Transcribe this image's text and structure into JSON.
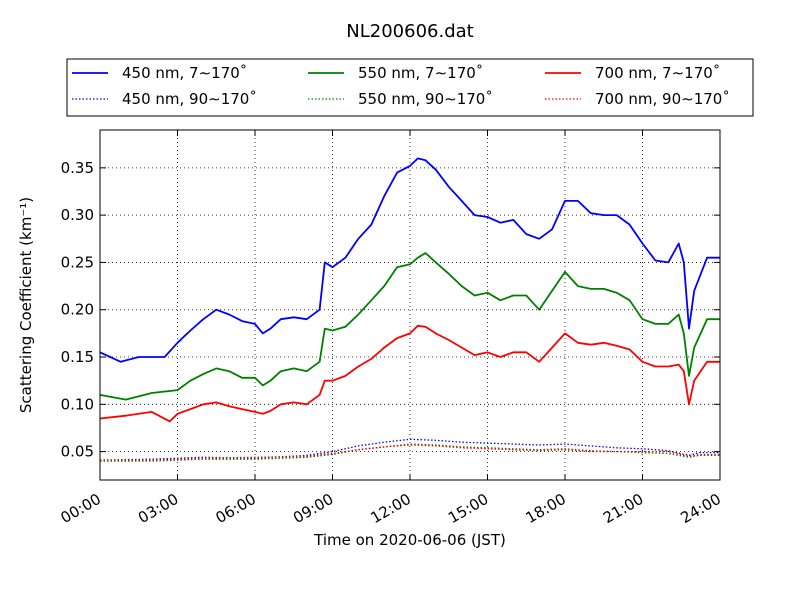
{
  "chart_data": {
    "type": "line",
    "title": "NL200606.dat",
    "xlabel": "Time on 2020-06-06 (JST)",
    "ylabel": "Scattering Coefficient (km⁻¹)",
    "xlim": [
      0,
      24
    ],
    "ylim": [
      0.02,
      0.39
    ],
    "x_unit": "hours",
    "grid": true,
    "legend_position": "top-outside",
    "x_ticks": [
      {
        "value": 0,
        "label": "00:00"
      },
      {
        "value": 3,
        "label": "03:00"
      },
      {
        "value": 6,
        "label": "06:00"
      },
      {
        "value": 9,
        "label": "09:00"
      },
      {
        "value": 12,
        "label": "12:00"
      },
      {
        "value": 15,
        "label": "15:00"
      },
      {
        "value": 18,
        "label": "18:00"
      },
      {
        "value": 21,
        "label": "21:00"
      },
      {
        "value": 24,
        "label": "24:00"
      }
    ],
    "y_ticks": [
      {
        "value": 0.05,
        "label": "0.05"
      },
      {
        "value": 0.1,
        "label": "0.10"
      },
      {
        "value": 0.15,
        "label": "0.15"
      },
      {
        "value": 0.2,
        "label": "0.20"
      },
      {
        "value": 0.25,
        "label": "0.25"
      },
      {
        "value": 0.3,
        "label": "0.30"
      },
      {
        "value": 0.35,
        "label": "0.35"
      }
    ],
    "series": [
      {
        "name": "450 nm, 7∼170˚",
        "color": "#0000ff",
        "style": "solid",
        "x": [
          0,
          0.8,
          1.5,
          2.5,
          3.0,
          3.5,
          4.0,
          4.5,
          5.0,
          5.5,
          6.0,
          6.3,
          6.6,
          7.0,
          7.5,
          8.0,
          8.5,
          8.7,
          9.0,
          9.5,
          10.0,
          10.5,
          11.0,
          11.5,
          12.0,
          12.3,
          12.6,
          13.0,
          13.5,
          14.0,
          14.5,
          15.0,
          15.5,
          16.0,
          16.5,
          17.0,
          17.5,
          18.0,
          18.5,
          19.0,
          19.5,
          20.0,
          20.5,
          21.0,
          21.5,
          22.0,
          22.2,
          22.4,
          22.6,
          22.8,
          23.0,
          23.5,
          24.0
        ],
        "y": [
          0.155,
          0.145,
          0.15,
          0.15,
          0.165,
          0.178,
          0.19,
          0.2,
          0.195,
          0.188,
          0.185,
          0.175,
          0.18,
          0.19,
          0.192,
          0.19,
          0.2,
          0.25,
          0.245,
          0.255,
          0.275,
          0.29,
          0.32,
          0.345,
          0.352,
          0.36,
          0.358,
          0.348,
          0.33,
          0.315,
          0.3,
          0.298,
          0.292,
          0.295,
          0.28,
          0.275,
          0.285,
          0.315,
          0.315,
          0.302,
          0.3,
          0.3,
          0.29,
          0.27,
          0.252,
          0.25,
          0.26,
          0.27,
          0.25,
          0.18,
          0.22,
          0.255,
          0.255
        ]
      },
      {
        "name": "450 nm, 90∼170˚",
        "color": "#0000ff",
        "style": "dotted",
        "x": [
          0,
          2,
          4,
          6,
          8,
          9,
          10,
          11,
          12,
          13,
          14,
          15,
          16,
          17,
          18,
          19,
          20,
          21,
          22,
          22.8,
          23.2,
          24
        ],
        "y": [
          0.041,
          0.042,
          0.044,
          0.043,
          0.046,
          0.05,
          0.056,
          0.06,
          0.063,
          0.062,
          0.06,
          0.059,
          0.058,
          0.057,
          0.058,
          0.056,
          0.054,
          0.053,
          0.051,
          0.046,
          0.049,
          0.049
        ]
      },
      {
        "name": "550 nm, 7∼170˚",
        "color": "#008000",
        "style": "solid",
        "x": [
          0,
          1,
          2,
          3,
          3.5,
          4,
          4.5,
          5,
          5.5,
          6,
          6.3,
          6.6,
          7,
          7.5,
          8,
          8.5,
          8.7,
          9,
          9.5,
          10,
          10.5,
          11,
          11.5,
          12,
          12.3,
          12.6,
          13,
          13.5,
          14,
          14.5,
          15,
          15.5,
          16,
          16.5,
          17,
          17.5,
          18,
          18.5,
          19,
          19.5,
          20,
          20.5,
          21,
          21.5,
          22,
          22.4,
          22.6,
          22.8,
          23,
          23.5,
          24
        ],
        "y": [
          0.11,
          0.105,
          0.112,
          0.115,
          0.125,
          0.132,
          0.138,
          0.135,
          0.128,
          0.128,
          0.12,
          0.125,
          0.135,
          0.138,
          0.135,
          0.145,
          0.18,
          0.178,
          0.182,
          0.195,
          0.21,
          0.225,
          0.245,
          0.248,
          0.255,
          0.26,
          0.25,
          0.238,
          0.225,
          0.215,
          0.218,
          0.21,
          0.215,
          0.215,
          0.2,
          0.22,
          0.24,
          0.225,
          0.222,
          0.222,
          0.218,
          0.21,
          0.19,
          0.185,
          0.185,
          0.195,
          0.175,
          0.13,
          0.16,
          0.19,
          0.19
        ]
      },
      {
        "name": "550 nm, 90∼170˚",
        "color": "#008000",
        "style": "dotted",
        "x": [
          0,
          2,
          4,
          6,
          8,
          9,
          10,
          11,
          12,
          13,
          14,
          15,
          16,
          17,
          18,
          19,
          20,
          21,
          22,
          22.8,
          23.2,
          24
        ],
        "y": [
          0.04,
          0.04,
          0.042,
          0.042,
          0.044,
          0.047,
          0.052,
          0.055,
          0.058,
          0.057,
          0.055,
          0.054,
          0.053,
          0.052,
          0.053,
          0.051,
          0.05,
          0.049,
          0.048,
          0.044,
          0.046,
          0.046
        ]
      },
      {
        "name": "700 nm, 7∼170˚",
        "color": "#ff0000",
        "style": "solid",
        "x": [
          0,
          1,
          2,
          2.7,
          3,
          3.5,
          4,
          4.5,
          5,
          5.5,
          6,
          6.3,
          6.6,
          7,
          7.5,
          8,
          8.5,
          8.7,
          9,
          9.5,
          10,
          10.5,
          11,
          11.5,
          12,
          12.3,
          12.6,
          13,
          13.5,
          14,
          14.5,
          15,
          15.5,
          16,
          16.5,
          17,
          17.5,
          18,
          18.5,
          19,
          19.5,
          20,
          20.5,
          21,
          21.5,
          22,
          22.4,
          22.6,
          22.8,
          23,
          23.5,
          24
        ],
        "y": [
          0.085,
          0.088,
          0.092,
          0.082,
          0.09,
          0.095,
          0.1,
          0.102,
          0.098,
          0.095,
          0.092,
          0.09,
          0.093,
          0.1,
          0.102,
          0.1,
          0.11,
          0.125,
          0.125,
          0.13,
          0.14,
          0.148,
          0.16,
          0.17,
          0.175,
          0.183,
          0.182,
          0.175,
          0.168,
          0.16,
          0.152,
          0.155,
          0.15,
          0.155,
          0.155,
          0.145,
          0.16,
          0.175,
          0.165,
          0.163,
          0.165,
          0.162,
          0.158,
          0.145,
          0.14,
          0.14,
          0.142,
          0.135,
          0.1,
          0.125,
          0.145,
          0.145
        ]
      },
      {
        "name": "700 nm, 90∼170˚",
        "color": "#ff0000",
        "style": "dotted",
        "x": [
          0,
          2,
          4,
          6,
          8,
          9,
          10,
          11,
          12,
          13,
          14,
          15,
          16,
          17,
          18,
          19,
          20,
          21,
          22,
          22.8,
          23.2,
          24
        ],
        "y": [
          0.041,
          0.041,
          0.043,
          0.044,
          0.045,
          0.048,
          0.052,
          0.055,
          0.057,
          0.056,
          0.054,
          0.053,
          0.052,
          0.051,
          0.052,
          0.05,
          0.05,
          0.05,
          0.05,
          0.045,
          0.047,
          0.047
        ]
      }
    ]
  }
}
